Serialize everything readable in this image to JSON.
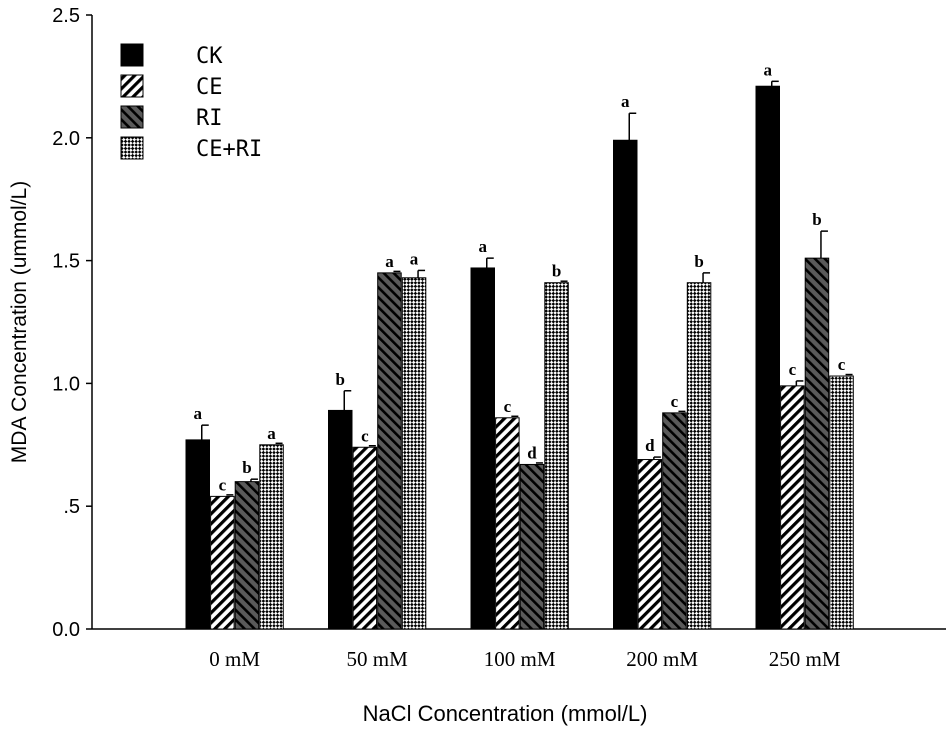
{
  "chart_data": {
    "type": "bar",
    "title": "",
    "xlabel": "NaCl Concentration (mmol/L)",
    "ylabel": "MDA Concentration (ummol/L)",
    "ylim": [
      0,
      2.5
    ],
    "yticks": [
      {
        "value": 0.0,
        "label": "0.0"
      },
      {
        "value": 0.5,
        "label": ".5"
      },
      {
        "value": 1.0,
        "label": "1.0"
      },
      {
        "value": 1.5,
        "label": "1.5"
      },
      {
        "value": 2.0,
        "label": "2.0"
      },
      {
        "value": 2.5,
        "label": "2.5"
      }
    ],
    "categories": [
      "0 mM",
      "50 mM",
      "100 mM",
      "200 mM",
      "250 mM"
    ],
    "legend_position": "top-left",
    "series": [
      {
        "name": "CK",
        "pattern": "solid",
        "values": [
          0.77,
          0.89,
          1.47,
          1.99,
          2.21
        ],
        "errors": [
          0.06,
          0.08,
          0.04,
          0.11,
          0.02
        ],
        "letters": [
          "a",
          "b",
          "a",
          "a",
          "a"
        ]
      },
      {
        "name": "CE",
        "pattern": "hatch-right",
        "values": [
          0.54,
          0.74,
          0.86,
          0.69,
          0.99
        ],
        "errors": [
          0.0,
          0.0,
          0.0,
          0.01,
          0.02
        ],
        "letters": [
          "c",
          "c",
          "c",
          "d",
          "c"
        ]
      },
      {
        "name": "RI",
        "pattern": "hatch-left",
        "values": [
          0.6,
          1.45,
          0.67,
          0.88,
          1.51
        ],
        "errors": [
          0.01,
          0.0,
          0.0,
          0.0,
          0.11
        ],
        "letters": [
          "b",
          "a",
          "d",
          "c",
          "b"
        ]
      },
      {
        "name": "CE+RI",
        "pattern": "checker",
        "values": [
          0.75,
          1.43,
          1.41,
          1.41,
          1.03
        ],
        "errors": [
          0.0,
          0.03,
          0.0,
          0.04,
          0.0
        ],
        "letters": [
          "a",
          "a",
          "b",
          "b",
          "c"
        ]
      }
    ]
  }
}
